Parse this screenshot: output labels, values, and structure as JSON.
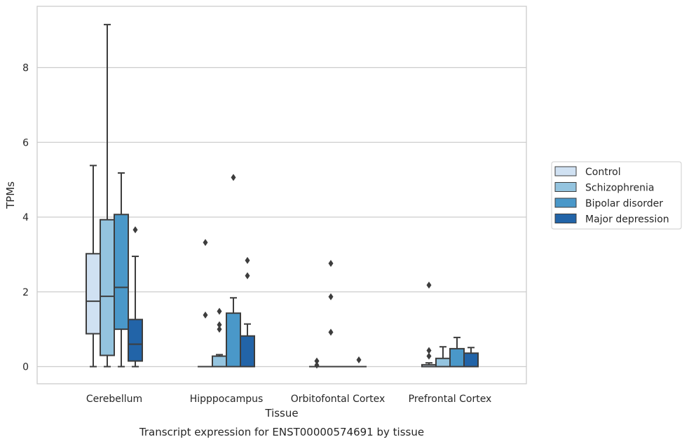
{
  "chart_data": {
    "type": "box",
    "title": "Transcript expression for ENST00000574691 by tissue",
    "xlabel": "Tissue",
    "ylabel": "TPMs",
    "ylim": [
      -0.45,
      9.6
    ],
    "yticks": [
      0,
      2,
      4,
      6,
      8
    ],
    "grid": true,
    "legend_position": "right",
    "categories": [
      "Cerebellum",
      "Hipppocampus",
      "Orbitofontal Cortex",
      "Prefrontal Cortex"
    ],
    "series": [
      {
        "name": "Control",
        "color": "#d0e1f2",
        "boxes": [
          {
            "q1": 0.88,
            "median": 1.75,
            "q3": 3.02,
            "whisker_low": 0.0,
            "whisker_high": 5.38,
            "outliers": []
          },
          {
            "q1": 0.0,
            "median": 0.0,
            "q3": 0.0,
            "whisker_low": 0.0,
            "whisker_high": 0.0,
            "outliers": [
              3.32,
              1.38
            ]
          },
          {
            "q1": 0.0,
            "median": 0.0,
            "q3": 0.0,
            "whisker_low": 0.0,
            "whisker_high": 0.0,
            "outliers": [
              0.15,
              0.04
            ]
          },
          {
            "q1": 0.0,
            "median": 0.0,
            "q3": 0.05,
            "whisker_low": 0.0,
            "whisker_high": 0.1,
            "outliers": [
              2.18,
              0.43,
              0.28
            ]
          }
        ]
      },
      {
        "name": "Schizophrenia",
        "color": "#94c4df",
        "boxes": [
          {
            "q1": 0.3,
            "median": 1.88,
            "q3": 3.93,
            "whisker_low": 0.0,
            "whisker_high": 9.15,
            "outliers": []
          },
          {
            "q1": 0.0,
            "median": 0.0,
            "q3": 0.28,
            "whisker_low": 0.0,
            "whisker_high": 0.32,
            "outliers": [
              1.48,
              1.12,
              1.0
            ]
          },
          {
            "q1": 0.0,
            "median": 0.0,
            "q3": 0.0,
            "whisker_low": 0.0,
            "whisker_high": 0.0,
            "outliers": [
              2.76,
              1.87,
              0.92
            ]
          },
          {
            "q1": 0.0,
            "median": 0.0,
            "q3": 0.22,
            "whisker_low": 0.0,
            "whisker_high": 0.53,
            "outliers": []
          }
        ]
      },
      {
        "name": "Bipolar disorder",
        "color": "#4a98c9",
        "boxes": [
          {
            "q1": 1.0,
            "median": 2.12,
            "q3": 4.07,
            "whisker_low": 0.0,
            "whisker_high": 5.18,
            "outliers": []
          },
          {
            "q1": 0.0,
            "median": 0.0,
            "q3": 1.43,
            "whisker_low": 0.0,
            "whisker_high": 1.84,
            "outliers": [
              5.06
            ]
          },
          {
            "q1": 0.0,
            "median": 0.0,
            "q3": 0.0,
            "whisker_low": 0.0,
            "whisker_high": 0.0,
            "outliers": []
          },
          {
            "q1": 0.0,
            "median": 0.0,
            "q3": 0.48,
            "whisker_low": 0.0,
            "whisker_high": 0.78,
            "outliers": []
          }
        ]
      },
      {
        "name": "Major depression",
        "color": "#2264a8",
        "boxes": [
          {
            "q1": 0.15,
            "median": 0.6,
            "q3": 1.26,
            "whisker_low": 0.0,
            "whisker_high": 2.95,
            "outliers": [
              3.66
            ]
          },
          {
            "q1": 0.0,
            "median": 0.0,
            "q3": 0.82,
            "whisker_low": 0.0,
            "whisker_high": 1.14,
            "outliers": [
              2.84,
              2.43
            ]
          },
          {
            "q1": 0.0,
            "median": 0.0,
            "q3": 0.0,
            "whisker_low": 0.0,
            "whisker_high": 0.0,
            "outliers": [
              0.18
            ]
          },
          {
            "q1": 0.0,
            "median": 0.0,
            "q3": 0.36,
            "whisker_low": 0.0,
            "whisker_high": 0.51,
            "outliers": []
          }
        ]
      }
    ]
  }
}
